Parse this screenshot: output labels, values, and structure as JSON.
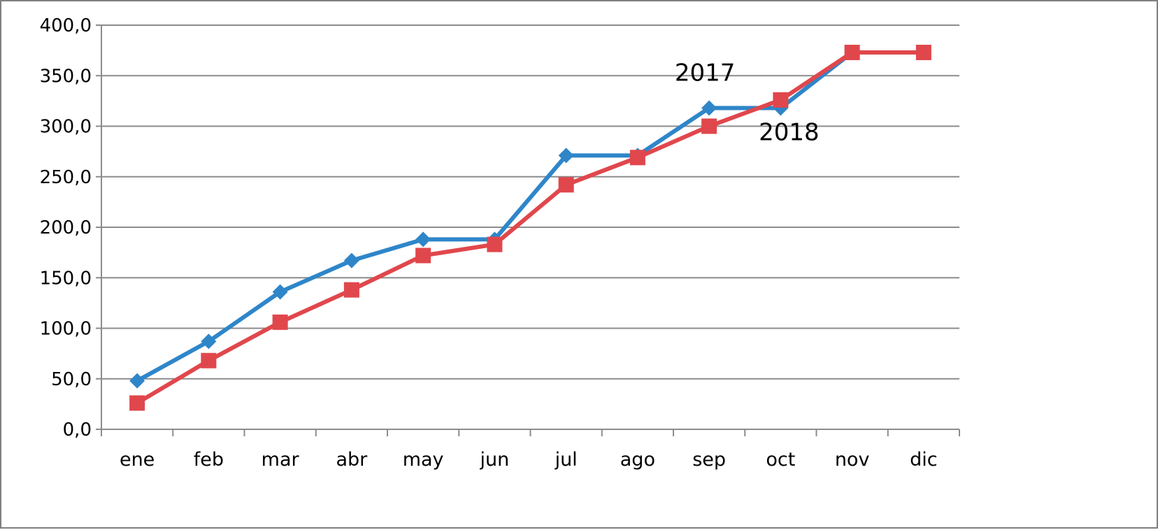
{
  "chart_data": {
    "type": "line",
    "categories": [
      "ene",
      "feb",
      "mar",
      "abr",
      "may",
      "jun",
      "jul",
      "ago",
      "sep",
      "oct",
      "nov",
      "dic"
    ],
    "series": [
      {
        "name": "2017",
        "color": "#2e86c9",
        "marker": "diamond",
        "values": [
          48,
          87,
          136,
          167,
          188,
          188,
          271,
          271,
          318,
          318,
          373,
          373
        ]
      },
      {
        "name": "2018",
        "color": "#e0474c",
        "marker": "square",
        "values": [
          26,
          68,
          106,
          138,
          172,
          183,
          242,
          269,
          300,
          326,
          373,
          373
        ]
      }
    ],
    "yticks": [
      "0,0",
      "50,0",
      "100,0",
      "150,0",
      "200,0",
      "250,0",
      "300,0",
      "350,0",
      "400,0"
    ],
    "ylim": [
      0,
      400
    ],
    "grid": "horizontal",
    "legend": "none",
    "annotations": [
      {
        "text": "2017",
        "series": "2017"
      },
      {
        "text": "2018",
        "series": "2018"
      }
    ]
  }
}
